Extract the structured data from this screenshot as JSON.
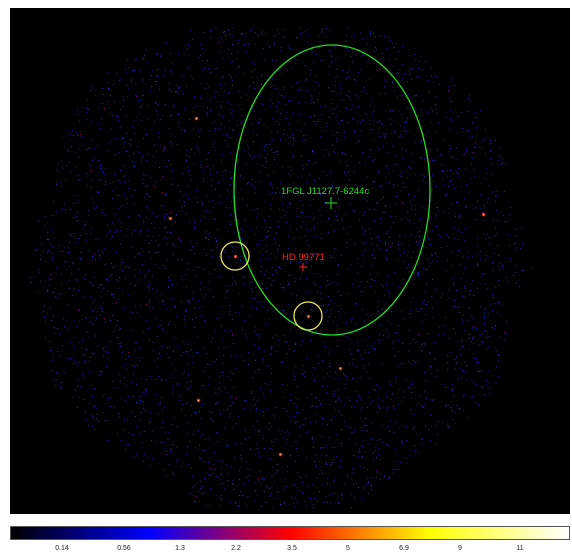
{
  "image": {
    "background_color": "#000000",
    "region_colors": [
      "#1a1aa8",
      "#2b2be0",
      "#4040ff",
      "#7a20a0",
      "#b01860"
    ],
    "annotations": {
      "source_label": "1FGL J1127.7-6244c",
      "source_color": "#22dd22",
      "star_label": "HD 99771",
      "star_color": "#ff2020",
      "circle_color": "#e8e860"
    }
  },
  "colorbar": {
    "ticks": [
      "0.14",
      "0.56",
      "1.3",
      "2.2",
      "3.5",
      "5",
      "6.9",
      "9",
      "11"
    ],
    "colors": [
      "#000000",
      "#0000ff",
      "#ff0000",
      "#ffff00",
      "#ffffff"
    ]
  }
}
